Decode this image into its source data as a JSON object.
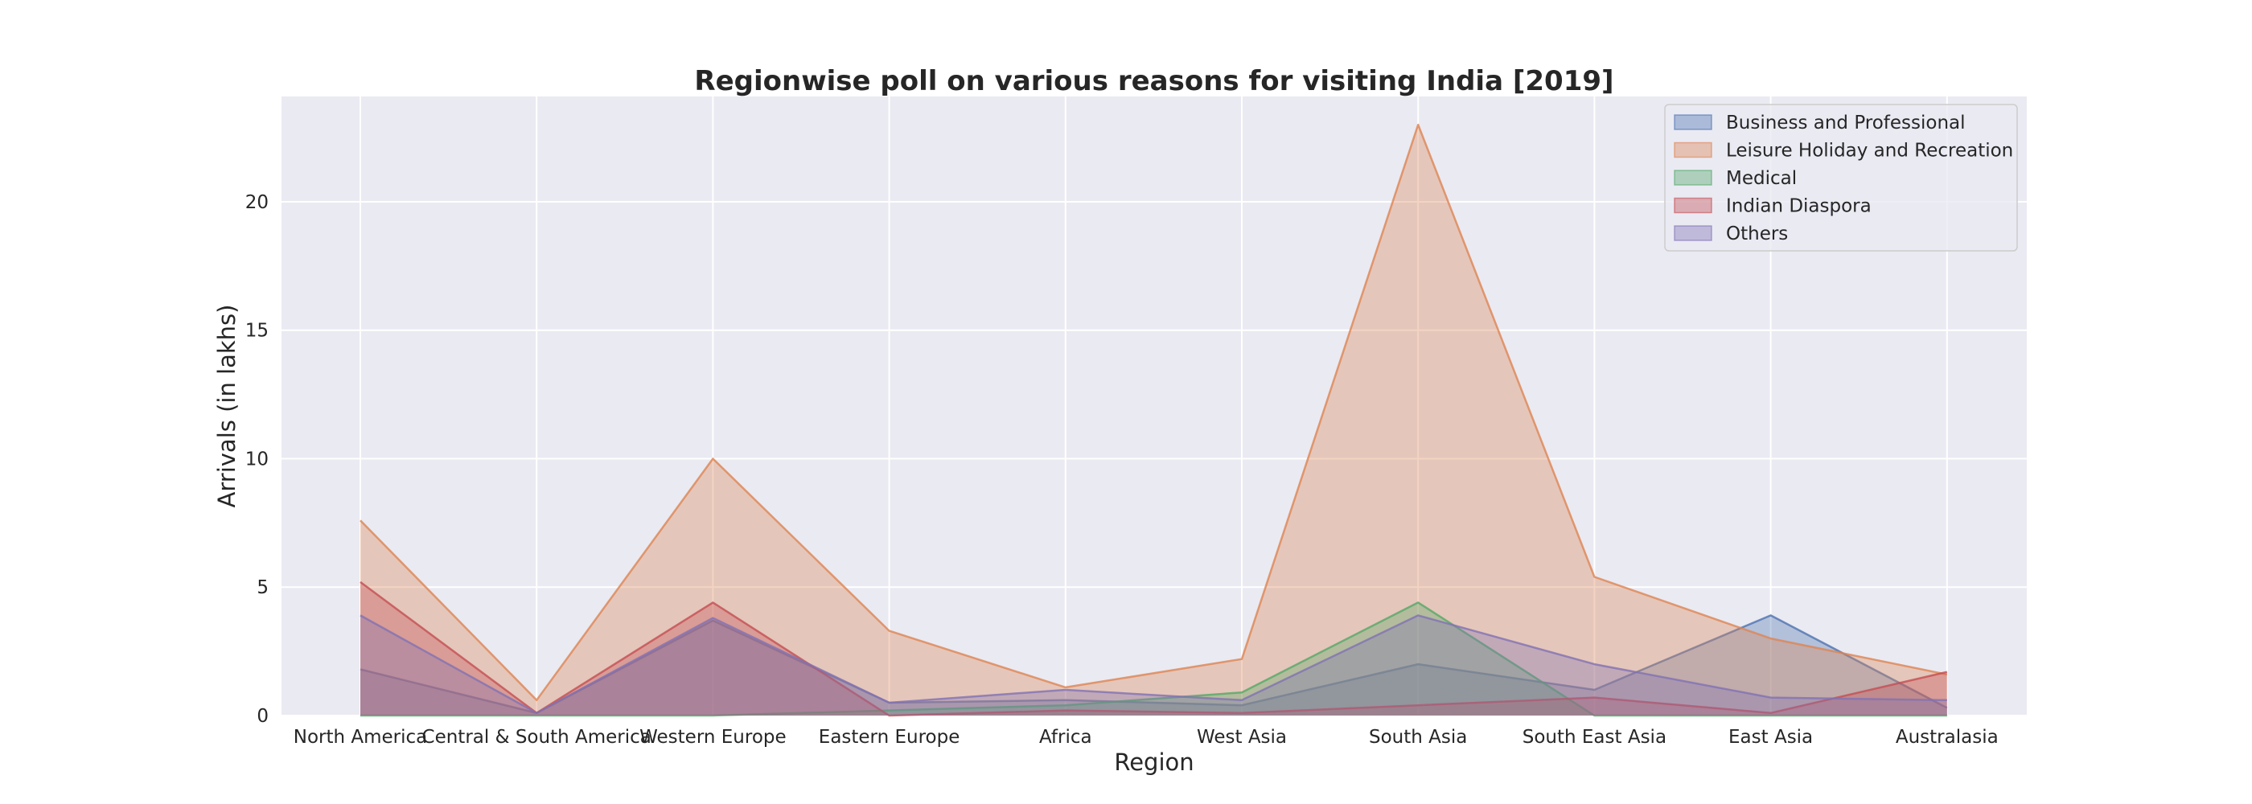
{
  "chart_data": {
    "type": "area",
    "title": "Regionwise poll on various reasons for visiting India [2019]",
    "xlabel": "Region",
    "ylabel": "Arrivals (in lakhs)",
    "categories": [
      "North America",
      "Central & South America",
      "Western Europe",
      "Eastern Europe",
      "Africa",
      "West Asia",
      "South Asia",
      "South East Asia",
      "East Asia",
      "Australasia"
    ],
    "yticks": [
      0,
      5,
      10,
      15,
      20
    ],
    "ylim": [
      0,
      24.1
    ],
    "grid": true,
    "legend_position": "top-right",
    "series": [
      {
        "name": "Business and Professional",
        "color": "#4c72b0",
        "values": [
          1.8,
          0.1,
          3.7,
          0.5,
          0.6,
          0.4,
          2.0,
          1.0,
          3.9,
          0.3
        ]
      },
      {
        "name": "Leisure Holiday and Recreation",
        "color": "#dd8452",
        "values": [
          7.6,
          0.6,
          10.0,
          3.3,
          1.1,
          2.2,
          23.0,
          5.4,
          3.0,
          1.6
        ]
      },
      {
        "name": "Medical",
        "color": "#55a868",
        "values": [
          0.0,
          0.0,
          0.0,
          0.2,
          0.4,
          0.9,
          4.4,
          0.0,
          0.0,
          0.0
        ]
      },
      {
        "name": "Indian Diaspora",
        "color": "#c44e52",
        "values": [
          5.2,
          0.1,
          4.4,
          0.0,
          0.2,
          0.1,
          0.4,
          0.7,
          0.1,
          1.7
        ]
      },
      {
        "name": "Others",
        "color": "#8172b3",
        "values": [
          3.9,
          0.1,
          3.8,
          0.5,
          1.0,
          0.6,
          3.9,
          2.0,
          0.7,
          0.6
        ]
      }
    ]
  }
}
